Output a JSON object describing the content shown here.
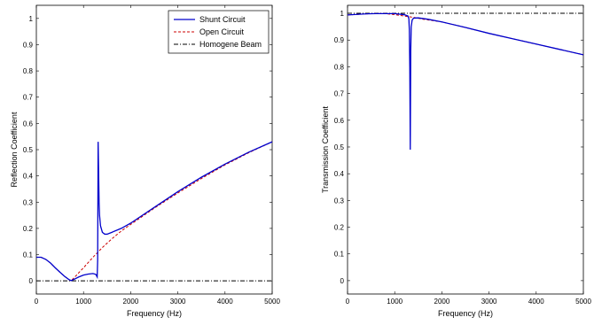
{
  "chart_data": [
    {
      "type": "line",
      "xlabel": "Frequency (Hz)",
      "ylabel": "Reflection Coefficient",
      "xlim": [
        0,
        5000
      ],
      "ylim": [
        -0.05,
        1.05
      ],
      "xticks": [
        0,
        1000,
        2000,
        3000,
        4000,
        5000
      ],
      "xtick_labels": [
        "0",
        "1000",
        "2000",
        "3000",
        "4000",
        "5000"
      ],
      "yticks": [
        0,
        0.1,
        0.2,
        0.3,
        0.4,
        0.5,
        0.6,
        0.7,
        0.8,
        0.9,
        1
      ],
      "ytick_labels": [
        "0",
        "0.1",
        "0.2",
        "0.3",
        "0.4",
        "0.5",
        "0.6",
        "0.7",
        "0.8",
        "0.9",
        "1"
      ],
      "grid": false,
      "legend_position": "top-right",
      "series": [
        {
          "name": "Shunt Circuit",
          "style": "solid",
          "color": "#0000cc",
          "x": [
            0,
            100,
            200,
            300,
            400,
            500,
            600,
            700,
            740,
            800,
            900,
            1000,
            1100,
            1200,
            1260,
            1290,
            1300,
            1310,
            1320,
            1330,
            1340,
            1360,
            1400,
            1450,
            1500,
            1600,
            1800,
            2000,
            2500,
            3000,
            3500,
            4000,
            4500,
            5000
          ],
          "y": [
            0.09,
            0.09,
            0.082,
            0.068,
            0.05,
            0.033,
            0.017,
            0.004,
            0.001,
            0.006,
            0.015,
            0.022,
            0.026,
            0.028,
            0.025,
            0.015,
            0.08,
            0.53,
            0.42,
            0.3,
            0.25,
            0.21,
            0.185,
            0.178,
            0.178,
            0.185,
            0.2,
            0.22,
            0.28,
            0.34,
            0.395,
            0.445,
            0.49,
            0.53
          ]
        },
        {
          "name": "Open Circuit",
          "style": "dashed",
          "color": "#cc0000",
          "x": [
            0,
            100,
            200,
            300,
            400,
            500,
            600,
            700,
            740,
            800,
            1000,
            1200,
            1400,
            1600,
            1800,
            2000,
            2500,
            3000,
            3500,
            4000,
            4500,
            5000
          ],
          "y": [
            0.09,
            0.09,
            0.082,
            0.068,
            0.05,
            0.033,
            0.017,
            0.004,
            0.001,
            0.012,
            0.05,
            0.09,
            0.127,
            0.16,
            0.19,
            0.215,
            0.277,
            0.335,
            0.39,
            0.442,
            0.488,
            0.53
          ]
        },
        {
          "name": "Homogene Beam",
          "style": "dashdot",
          "color": "#000000",
          "x": [
            0,
            5000
          ],
          "y": [
            0,
            0
          ]
        }
      ]
    },
    {
      "type": "line",
      "xlabel": "Frequency (Hz)",
      "ylabel": "Transmission Coefficient",
      "xlim": [
        0,
        5000
      ],
      "ylim": [
        -0.05,
        1.03
      ],
      "xticks": [
        0,
        1000,
        2000,
        3000,
        4000,
        5000
      ],
      "xtick_labels": [
        "0",
        "1000",
        "2000",
        "3000",
        "4000",
        "5000"
      ],
      "yticks": [
        0,
        0.1,
        0.2,
        0.3,
        0.4,
        0.5,
        0.6,
        0.7,
        0.8,
        0.9,
        1
      ],
      "ytick_labels": [
        "0",
        "0.1",
        "0.2",
        "0.3",
        "0.4",
        "0.5",
        "0.6",
        "0.7",
        "0.8",
        "0.9",
        "1"
      ],
      "grid": false,
      "series": [
        {
          "style": "solid",
          "color": "#0000cc",
          "x": [
            0,
            200,
            400,
            600,
            800,
            1000,
            1200,
            1280,
            1300,
            1310,
            1320,
            1330,
            1340,
            1350,
            1370,
            1400,
            1500,
            1700,
            2000,
            2500,
            3000,
            3500,
            4000,
            4500,
            5000
          ],
          "y": [
            0.994,
            0.996,
            0.998,
            0.999,
            0.999,
            0.999,
            0.995,
            0.99,
            0.98,
            0.94,
            0.8,
            0.49,
            0.86,
            0.95,
            0.975,
            0.982,
            0.983,
            0.978,
            0.968,
            0.947,
            0.925,
            0.905,
            0.885,
            0.865,
            0.845
          ]
        },
        {
          "style": "dashed",
          "color": "#cc0000",
          "x": [
            0,
            200,
            400,
            600,
            800,
            1000,
            1200,
            1400,
            1600,
            2000,
            2500,
            3000,
            3500,
            4000,
            4500,
            5000
          ],
          "y": [
            0.994,
            0.996,
            0.998,
            0.999,
            0.999,
            0.995,
            0.99,
            0.985,
            0.978,
            0.968,
            0.947,
            0.925,
            0.905,
            0.885,
            0.865,
            0.845
          ]
        },
        {
          "style": "dashdot",
          "color": "#000000",
          "x": [
            0,
            5000
          ],
          "y": [
            1,
            1
          ]
        }
      ]
    }
  ]
}
